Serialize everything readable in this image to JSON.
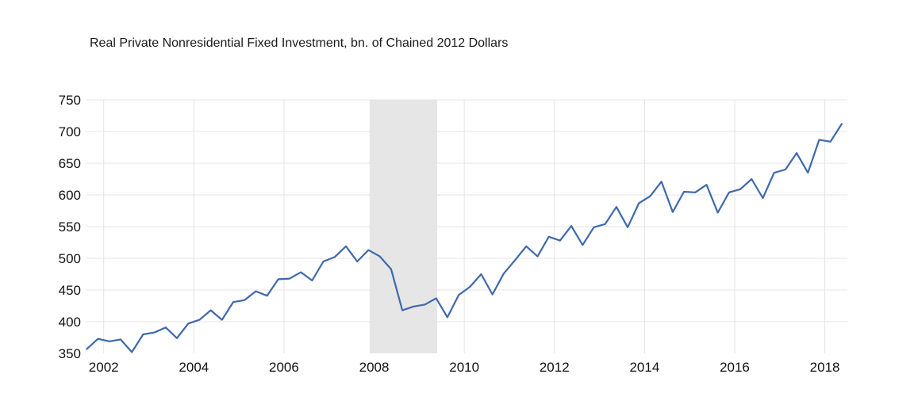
{
  "chart_data": {
    "type": "line",
    "title": "Real Private Nonresidential Fixed Investment, bn. of Chained 2012 Dollars",
    "xlabel": "",
    "ylabel": "",
    "ylim": [
      350,
      750
    ],
    "xlim": [
      2001.6,
      2018.5
    ],
    "y_ticks": [
      350,
      400,
      450,
      500,
      550,
      600,
      650,
      700,
      750
    ],
    "x_ticks": [
      2002,
      2004,
      2006,
      2008,
      2010,
      2012,
      2014,
      2016,
      2018
    ],
    "grid": true,
    "legend": "none",
    "line_color": "#3e69ac",
    "recession_color": "#e6e6e6",
    "recession": {
      "start": 2007.9,
      "end": 2009.4
    },
    "series": [
      {
        "x": [
          2001.625,
          2001.875,
          2002.125,
          2002.375,
          2002.625,
          2002.875,
          2003.125,
          2003.375,
          2003.625,
          2003.875,
          2004.125,
          2004.375,
          2004.625,
          2004.875,
          2005.125,
          2005.375,
          2005.625,
          2005.875,
          2006.125,
          2006.375,
          2006.625,
          2006.875,
          2007.125,
          2007.375,
          2007.625,
          2007.875,
          2008.125,
          2008.375,
          2008.625,
          2008.875,
          2009.125,
          2009.375,
          2009.625,
          2009.875,
          2010.125,
          2010.375,
          2010.625,
          2010.875,
          2011.125,
          2011.375,
          2011.625,
          2011.875,
          2012.125,
          2012.375,
          2012.625,
          2012.875,
          2013.125,
          2013.375,
          2013.625,
          2013.875,
          2014.125,
          2014.375,
          2014.625,
          2014.875,
          2015.125,
          2015.375,
          2015.625,
          2015.875,
          2016.125,
          2016.375,
          2016.625,
          2016.875,
          2017.125,
          2017.375,
          2017.625,
          2017.875,
          2018.125,
          2018.375
        ],
        "values": [
          357,
          373,
          369,
          372,
          352,
          380,
          383,
          391,
          374,
          397,
          403,
          418,
          403,
          431,
          434,
          448,
          441,
          467,
          468,
          478,
          465,
          495,
          502,
          519,
          495,
          513,
          503,
          483,
          418,
          424,
          427,
          437,
          407,
          442,
          455,
          475,
          443,
          476,
          497,
          519,
          503,
          534,
          528,
          551,
          521,
          549,
          554,
          581,
          549,
          587,
          598,
          621,
          573,
          605,
          604,
          616,
          572,
          604,
          609,
          625,
          595,
          635,
          640,
          666,
          635,
          687,
          684,
          712
        ]
      }
    ]
  }
}
